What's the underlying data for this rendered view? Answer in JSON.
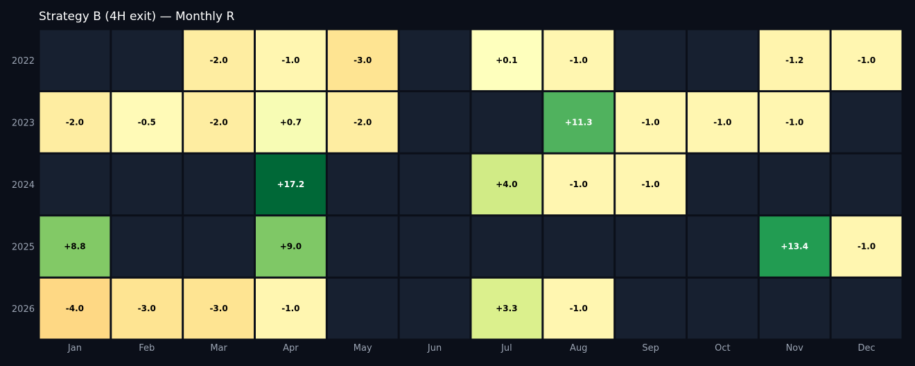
{
  "chart_data": {
    "type": "heatmap",
    "title": "Strategy B (4H exit) — Monthly R",
    "xlabel": "",
    "ylabel": "",
    "x_categories": [
      "Jan",
      "Feb",
      "Mar",
      "Apr",
      "May",
      "Jun",
      "Jul",
      "Aug",
      "Sep",
      "Oct",
      "Nov",
      "Dec"
    ],
    "y_categories": [
      "2022",
      "2023",
      "2024",
      "2025",
      "2026"
    ],
    "values": [
      [
        null,
        null,
        -2.0,
        -1.0,
        -3.0,
        null,
        0.1,
        -1.0,
        null,
        null,
        -1.2,
        -1.0
      ],
      [
        -2.0,
        -0.5,
        -2.0,
        0.7,
        -2.0,
        null,
        null,
        11.3,
        -1.0,
        -1.0,
        -1.0,
        null
      ],
      [
        null,
        null,
        null,
        17.2,
        null,
        null,
        4.0,
        -1.0,
        -1.0,
        null,
        null,
        null
      ],
      [
        8.8,
        null,
        null,
        9.0,
        null,
        null,
        null,
        null,
        null,
        null,
        13.4,
        -1.0
      ],
      [
        -4.0,
        -3.0,
        -3.0,
        -1.0,
        null,
        null,
        3.3,
        -1.0,
        null,
        null,
        null,
        null
      ]
    ],
    "colormap": "RdYlGn",
    "empty_color": "#172030",
    "background": "#0b0f19",
    "grid": false,
    "legend": "none"
  }
}
